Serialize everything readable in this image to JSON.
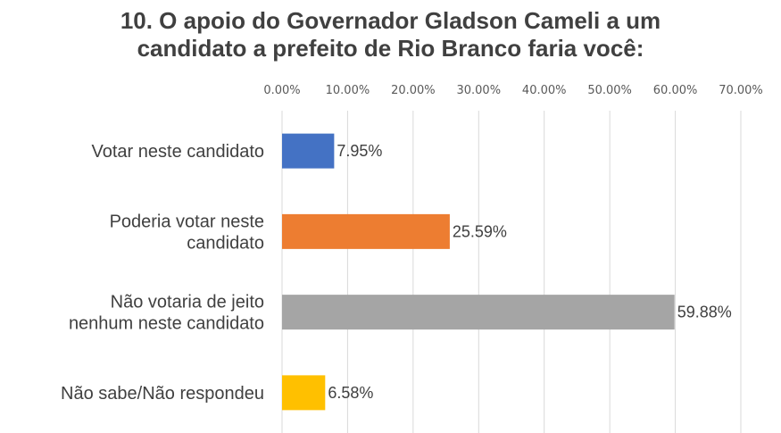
{
  "chart_data": {
    "type": "bar",
    "orientation": "horizontal",
    "title_lines": [
      "10. O apoio do Governador Gladson Cameli a um",
      "candidato a prefeito de Rio Branco faria você:"
    ],
    "xlabel": "",
    "ylabel": "",
    "xlim": [
      0,
      70
    ],
    "x_ticks": [
      "0.00%",
      "10.00%",
      "20.00%",
      "30.00%",
      "40.00%",
      "50.00%",
      "60.00%",
      "70.00%"
    ],
    "x_tick_position": "top",
    "grid": true,
    "legend": false,
    "categories": [
      [
        "Votar neste candidato"
      ],
      [
        "Poderia votar neste",
        "candidato"
      ],
      [
        "Não votaria de jeito",
        "nenhum neste candidato"
      ],
      [
        "Não sabe/Não respondeu"
      ]
    ],
    "values": [
      7.95,
      25.59,
      59.88,
      6.58
    ],
    "value_labels": [
      "7.95%",
      "25.59%",
      "59.88%",
      "6.58%"
    ],
    "colors": [
      "#4472C4",
      "#ED7D31",
      "#A5A5A5",
      "#FFC000"
    ]
  }
}
